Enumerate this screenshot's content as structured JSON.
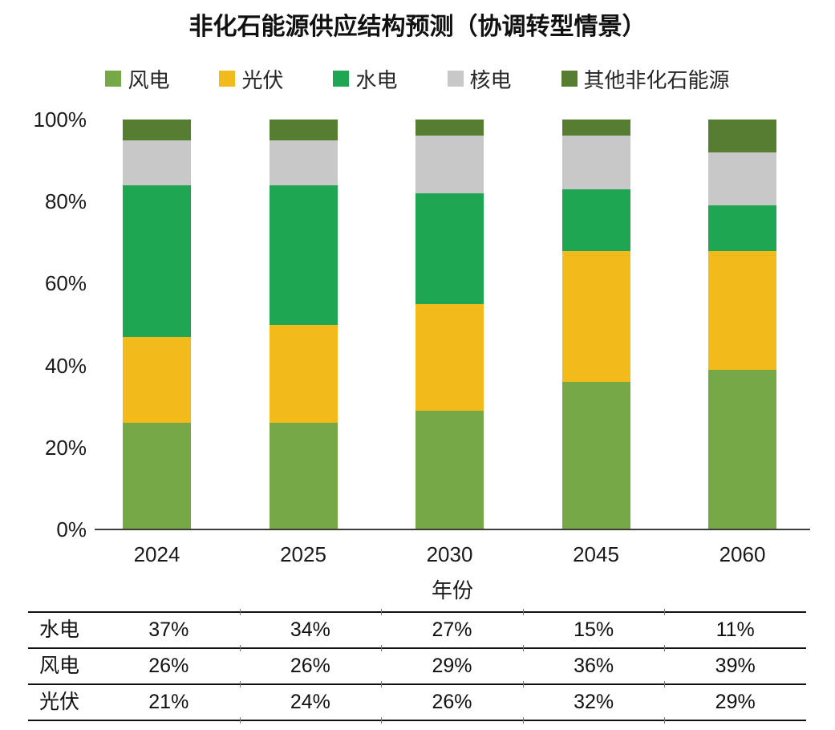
{
  "title": "非化石能源供应结构预测（协调转型情景）",
  "chart_data": {
    "type": "bar",
    "subtype": "stacked-100-percent",
    "title": "非化石能源供应结构预测（协调转型情景）",
    "categories": [
      "2024",
      "2025",
      "2030",
      "2045",
      "2060"
    ],
    "series": [
      {
        "name": "风电",
        "color": "#76A845",
        "values": [
          26,
          26,
          29,
          36,
          39
        ]
      },
      {
        "name": "光伏",
        "color": "#F2BA1B",
        "values": [
          21,
          24,
          26,
          32,
          29
        ]
      },
      {
        "name": "水电",
        "color": "#1FA653",
        "values": [
          37,
          34,
          27,
          15,
          11
        ]
      },
      {
        "name": "核电",
        "color": "#C8C8C8",
        "values": [
          11,
          11,
          14,
          13,
          13
        ]
      },
      {
        "name": "其他非化石能源",
        "color": "#557E30",
        "values": [
          5,
          5,
          4,
          4,
          8
        ]
      }
    ],
    "stack_order_bottom_to_top": [
      "风电",
      "光伏",
      "水电",
      "核电",
      "其他非化石能源"
    ],
    "xlabel": "年份",
    "ylabel": "",
    "ylim": [
      0,
      100
    ],
    "y_ticks": [
      {
        "label": "100%",
        "value": 100
      },
      {
        "label": "80%",
        "value": 80
      },
      {
        "label": "60%",
        "value": 60
      },
      {
        "label": "40%",
        "value": 40
      },
      {
        "label": "20%",
        "value": 20
      },
      {
        "label": "0%",
        "value": 0
      }
    ],
    "grid": false,
    "legend_position": "top"
  },
  "table": {
    "rows": [
      {
        "label": "水电",
        "values": [
          "37%",
          "34%",
          "27%",
          "15%",
          "11%"
        ]
      },
      {
        "label": "风电",
        "values": [
          "26%",
          "26%",
          "29%",
          "36%",
          "39%"
        ]
      },
      {
        "label": "光伏",
        "values": [
          "21%",
          "24%",
          "26%",
          "32%",
          "29%"
        ]
      }
    ]
  },
  "colors": {
    "axis_line": "#3d3d3d",
    "table_border": "#111111",
    "text": "#1a1a1a"
  }
}
